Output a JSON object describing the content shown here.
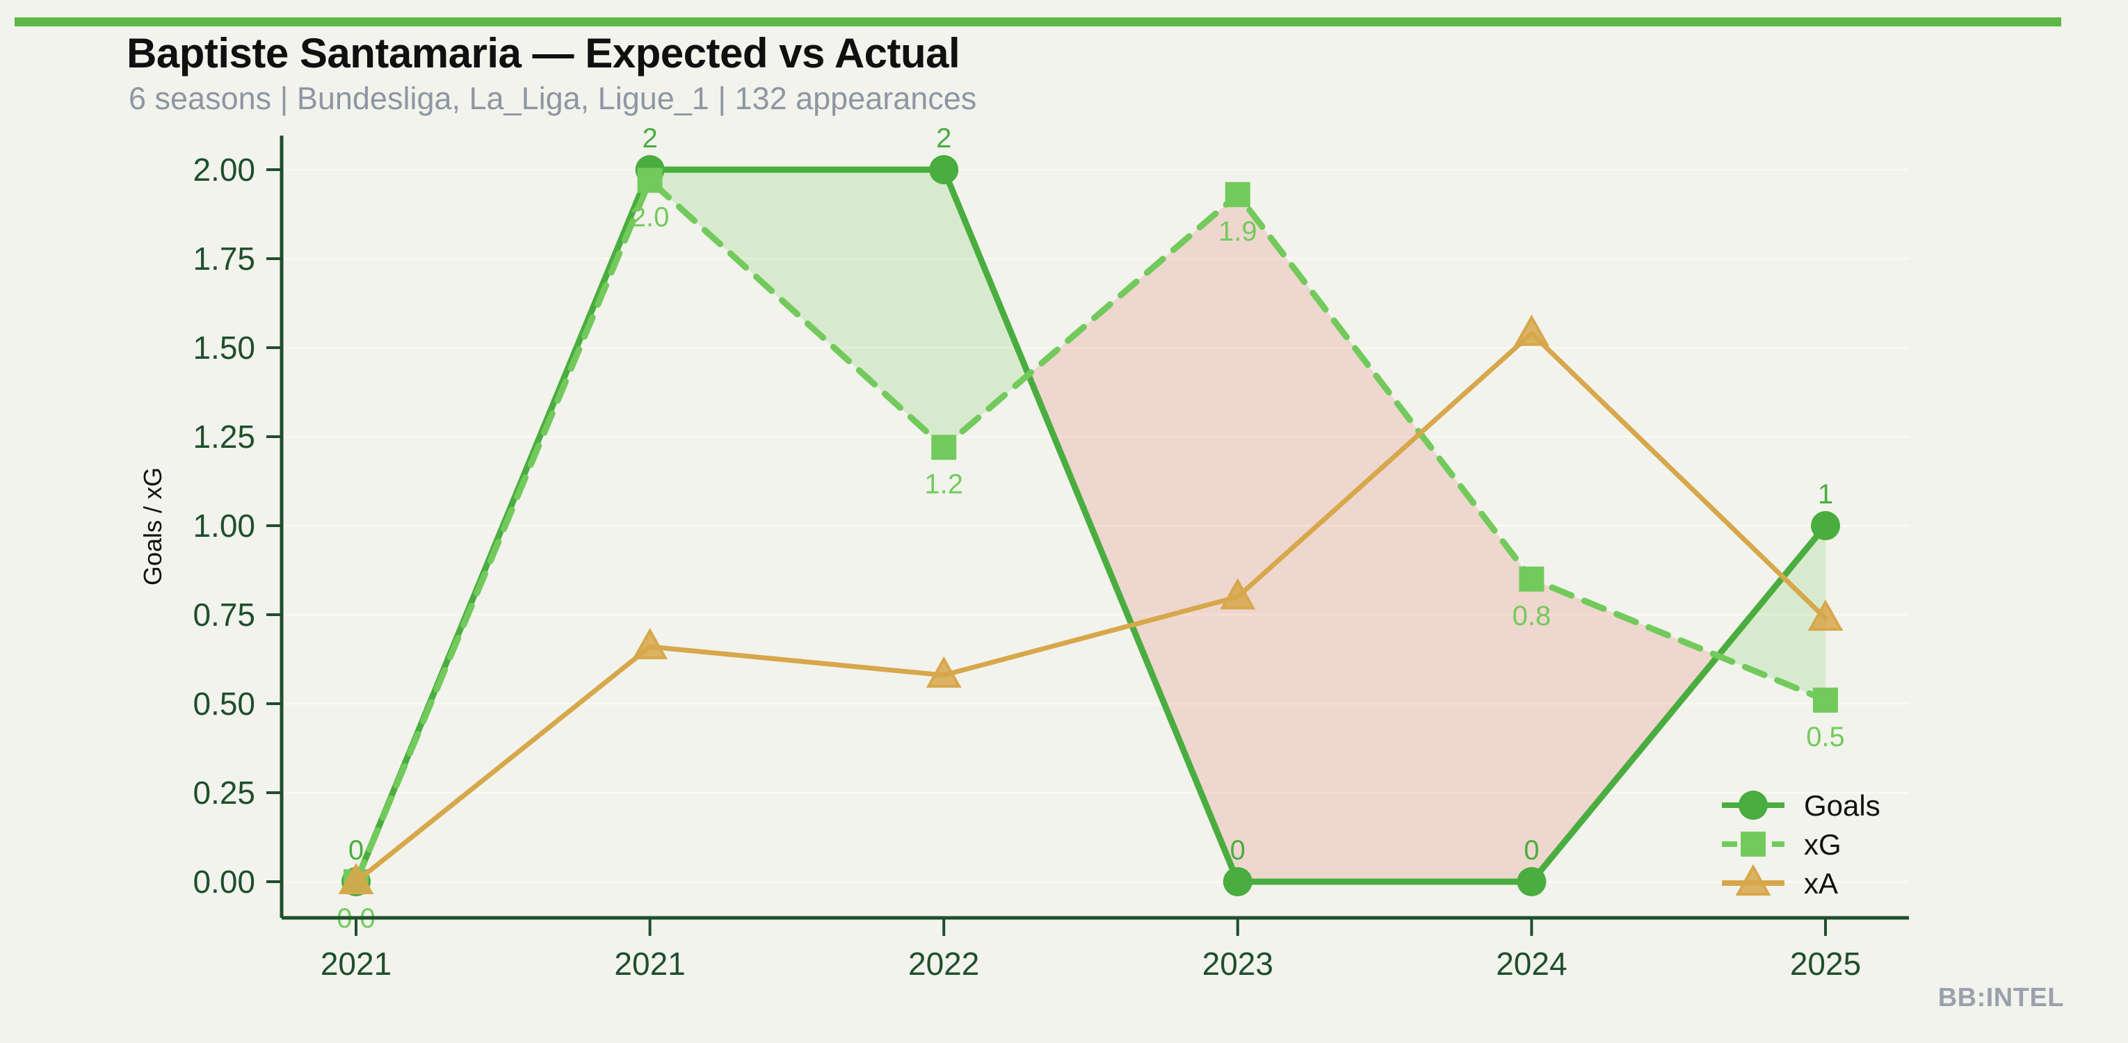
{
  "page": {
    "title": "Baptiste Santamaria — Expected vs Actual",
    "subtitle": "6 seasons | Bundesliga, La_Liga, Ligue_1 | 132 appearances",
    "footer_brand": "BB:INTEL",
    "background": "#f2f3ec",
    "accent_bar_color": "#5cb747"
  },
  "chart_data": {
    "type": "line",
    "title": "Baptiste Santamaria — Expected vs Actual",
    "subtitle": "6 seasons | Bundesliga, La_Liga, Ligue_1 | 132 appearances",
    "categories": [
      "2021",
      "2021",
      "2022",
      "2023",
      "2024",
      "2025"
    ],
    "series": [
      {
        "name": "Goals",
        "marker": "circle",
        "line_style": "solid",
        "color": "#4aad3f",
        "values": [
          0,
          2,
          2,
          0,
          0,
          1
        ],
        "point_labels": [
          "0",
          "2",
          "2",
          "0",
          "0",
          "1"
        ],
        "label_pos": "above"
      },
      {
        "name": "xG",
        "marker": "square",
        "line_style": "dashed",
        "color": "#73ca5c",
        "values": [
          0.0,
          1.97,
          1.22,
          1.93,
          0.85,
          0.51
        ],
        "point_labels": [
          "0.0",
          "2.0",
          "1.2",
          "1.9",
          "0.8",
          "0.5"
        ],
        "label_pos": "below"
      },
      {
        "name": "xA",
        "marker": "triangle",
        "line_style": "solid",
        "color": "#d7a74b",
        "values": [
          0.0,
          0.66,
          0.58,
          0.8,
          1.54,
          0.74
        ],
        "point_labels": [],
        "label_pos": "none"
      }
    ],
    "xlabel": "",
    "ylabel": "Goals / xG",
    "ylim": [
      -0.1,
      2.15
    ],
    "yticks": [
      0,
      0.25,
      0.5,
      0.75,
      1.0,
      1.25,
      1.5,
      1.75,
      2.0
    ],
    "ytick_labels": [
      "0.00",
      "0.25",
      "0.50",
      "0.75",
      "1.00",
      "1.25",
      "1.50",
      "1.75",
      "2.00"
    ],
    "grid": "horizontal-faint",
    "legend_position": "lower right",
    "legend_entries": [
      "Goals",
      "xG",
      "xA"
    ],
    "fill_between": {
      "upper_series": "Goals",
      "lower_series": "xG",
      "positive_color": "rgba(115,202,92,0.20)",
      "negative_color": "rgba(225,105,90,0.20)"
    },
    "colors": {
      "axis": "#1f4f2e",
      "grid": "#fafaf5",
      "tick_label": "#1f4f2e",
      "axis_title": "#111111"
    }
  }
}
